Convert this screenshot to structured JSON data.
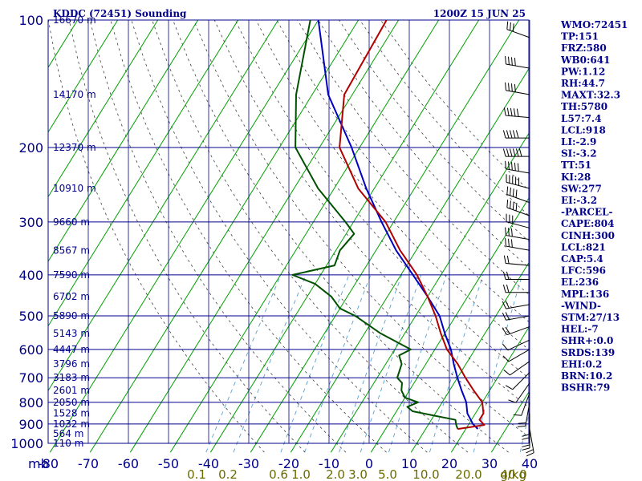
{
  "header": {
    "title": "KDDC (72451) Sounding",
    "time": "1200Z 15 JUN 25"
  },
  "indices": [
    "WMO:72451",
    "TP:151",
    "FRZ:580",
    "WB0:641",
    "PW:1.12",
    "RH:44.7",
    "MAXT:32.3",
    "TH:5780",
    "L57:7.4",
    "LCL:918",
    "LI:-2.9",
    "SI:-3.2",
    "TT:51",
    "KI:28",
    "SW:277",
    "EI:-3.2",
    "-PARCEL-",
    "CAPE:804",
    "CINH:300",
    "LCL:821",
    "CAP:5.4",
    "LFC:596",
    "EL:236",
    "MPL:136",
    "-WIND-",
    "STM:27/13",
    "HEL:-7",
    "SHR+:0.0",
    "SRDS:139",
    "EHI:0.2",
    "BRN:10.2",
    "BSHR:79"
  ],
  "colors": {
    "isobar": "#00008b",
    "isotherm": "#00a000",
    "temperature": "#b00000",
    "dewpoint": "#005000",
    "parcel": "#0000c0",
    "mixing_ratio": "#5aa0d0",
    "dry_adiabat": "#404040",
    "wind": "#000000"
  },
  "chart_data": {
    "type": "skew-t",
    "xaxis_unit": "mb",
    "pressure_levels": [
      100,
      200,
      300,
      400,
      500,
      600,
      700,
      800,
      900,
      1000
    ],
    "temperature_ticks": [
      -80,
      -70,
      -60,
      -50,
      -40,
      -30,
      -20,
      -10,
      0,
      10,
      20,
      30,
      40
    ],
    "mixing_ratio_labels": [
      "0.1",
      "0.2",
      "0.6",
      "1.0",
      "2.0",
      "3.0",
      "5.0",
      "10.0",
      "20.0",
      "40.0"
    ],
    "mixing_ratio_unit": "g/kg",
    "height_labels": [
      {
        "p": 100,
        "label": "16670 m"
      },
      {
        "p": 150,
        "label": "14170 m"
      },
      {
        "p": 200,
        "label": "12370 m"
      },
      {
        "p": 250,
        "label": "10910 m"
      },
      {
        "p": 300,
        "label": "9660 m"
      },
      {
        "p": 350,
        "label": "8567 m"
      },
      {
        "p": 400,
        "label": "7590 m"
      },
      {
        "p": 450,
        "label": "6702 m"
      },
      {
        "p": 500,
        "label": "5890 m"
      },
      {
        "p": 550,
        "label": "5143 m"
      },
      {
        "p": 600,
        "label": "4447 m"
      },
      {
        "p": 650,
        "label": "3796 m"
      },
      {
        "p": 700,
        "label": "3183 m"
      },
      {
        "p": 750,
        "label": "2601 m"
      },
      {
        "p": 800,
        "label": "2050 m"
      },
      {
        "p": 850,
        "label": "1528 m"
      },
      {
        "p": 900,
        "label": "1032 m"
      },
      {
        "p": 950,
        "label": "564 m"
      },
      {
        "p": 1000,
        "label": "110 m"
      }
    ],
    "temperature_profile": [
      [
        100,
        -63
      ],
      [
        150,
        -62
      ],
      [
        200,
        -55
      ],
      [
        250,
        -44
      ],
      [
        300,
        -32
      ],
      [
        350,
        -24
      ],
      [
        400,
        -16
      ],
      [
        450,
        -10
      ],
      [
        500,
        -5
      ],
      [
        550,
        -1
      ],
      [
        600,
        3
      ],
      [
        650,
        8
      ],
      [
        700,
        12
      ],
      [
        750,
        16
      ],
      [
        800,
        20
      ],
      [
        850,
        22
      ],
      [
        880,
        22
      ],
      [
        905,
        24
      ],
      [
        925,
        18
      ]
    ],
    "dewpoint_profile": [
      [
        100,
        -82
      ],
      [
        150,
        -74
      ],
      [
        200,
        -66
      ],
      [
        250,
        -54
      ],
      [
        300,
        -42
      ],
      [
        320,
        -38
      ],
      [
        350,
        -39
      ],
      [
        380,
        -38
      ],
      [
        400,
        -47
      ],
      [
        420,
        -40
      ],
      [
        450,
        -34
      ],
      [
        480,
        -30
      ],
      [
        500,
        -25
      ],
      [
        550,
        -16
      ],
      [
        600,
        -6
      ],
      [
        620,
        -8
      ],
      [
        650,
        -6
      ],
      [
        700,
        -5
      ],
      [
        720,
        -3
      ],
      [
        750,
        -2
      ],
      [
        780,
        0
      ],
      [
        800,
        4
      ],
      [
        820,
        2
      ],
      [
        840,
        4
      ],
      [
        860,
        10
      ],
      [
        880,
        16
      ],
      [
        905,
        17
      ],
      [
        925,
        18
      ]
    ],
    "parcel_profile": [
      [
        100,
        -80
      ],
      [
        150,
        -66
      ],
      [
        200,
        -52
      ],
      [
        250,
        -42
      ],
      [
        300,
        -33
      ],
      [
        350,
        -25
      ],
      [
        400,
        -17
      ],
      [
        450,
        -10
      ],
      [
        500,
        -4
      ],
      [
        550,
        0
      ],
      [
        600,
        4
      ],
      [
        650,
        7
      ],
      [
        700,
        10
      ],
      [
        750,
        13
      ],
      [
        800,
        16
      ],
      [
        850,
        18
      ],
      [
        900,
        21
      ],
      [
        925,
        23
      ]
    ],
    "wind_barbs": [
      {
        "p": 110,
        "dir": 290,
        "spd": 35
      },
      {
        "p": 130,
        "dir": 280,
        "spd": 40
      },
      {
        "p": 150,
        "dir": 280,
        "spd": 45
      },
      {
        "p": 170,
        "dir": 275,
        "spd": 50
      },
      {
        "p": 190,
        "dir": 270,
        "spd": 55
      },
      {
        "p": 210,
        "dir": 270,
        "spd": 60
      },
      {
        "p": 230,
        "dir": 280,
        "spd": 55
      },
      {
        "p": 250,
        "dir": 285,
        "spd": 50
      },
      {
        "p": 270,
        "dir": 290,
        "spd": 45
      },
      {
        "p": 290,
        "dir": 290,
        "spd": 40
      },
      {
        "p": 310,
        "dir": 285,
        "spd": 35
      },
      {
        "p": 330,
        "dir": 280,
        "spd": 30
      },
      {
        "p": 350,
        "dir": 280,
        "spd": 30
      },
      {
        "p": 380,
        "dir": 275,
        "spd": 25
      },
      {
        "p": 410,
        "dir": 270,
        "spd": 25
      },
      {
        "p": 440,
        "dir": 270,
        "spd": 20
      },
      {
        "p": 470,
        "dir": 260,
        "spd": 20
      },
      {
        "p": 500,
        "dir": 260,
        "spd": 20
      },
      {
        "p": 530,
        "dir": 250,
        "spd": 20
      },
      {
        "p": 570,
        "dir": 245,
        "spd": 15
      },
      {
        "p": 600,
        "dir": 240,
        "spd": 15
      },
      {
        "p": 640,
        "dir": 235,
        "spd": 15
      },
      {
        "p": 680,
        "dir": 225,
        "spd": 15
      },
      {
        "p": 720,
        "dir": 215,
        "spd": 15
      },
      {
        "p": 760,
        "dir": 200,
        "spd": 15
      },
      {
        "p": 800,
        "dir": 190,
        "spd": 20
      },
      {
        "p": 850,
        "dir": 180,
        "spd": 25
      },
      {
        "p": 900,
        "dir": 180,
        "spd": 25
      },
      {
        "p": 925,
        "dir": 170,
        "spd": 20
      }
    ]
  }
}
